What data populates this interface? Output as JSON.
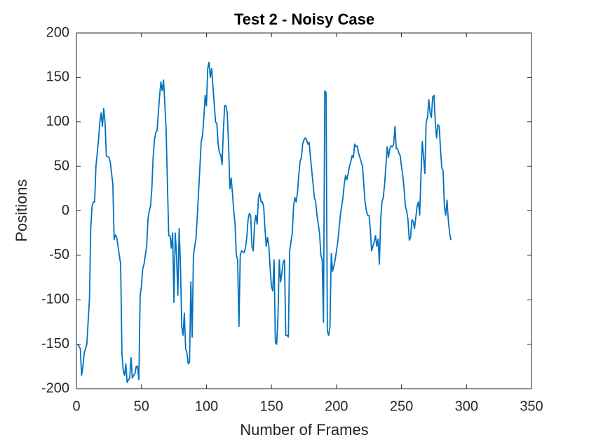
{
  "chart_data": {
    "type": "line",
    "title": "Test 2 - Noisy Case",
    "x_label": "Number of Frames",
    "y_label": "Positions",
    "xlim": [
      0,
      350
    ],
    "xticks": [
      0,
      50,
      100,
      150,
      200,
      250,
      300,
      350
    ],
    "ylim": [
      -200,
      200
    ],
    "yticks": [
      -200,
      -150,
      -100,
      -50,
      0,
      50,
      100,
      150,
      200
    ],
    "grid": false,
    "x": [
      1,
      3,
      4,
      5,
      6,
      8,
      10,
      11,
      12,
      13,
      14,
      15,
      17,
      18,
      19,
      20,
      21,
      22,
      23,
      25,
      26,
      28,
      29,
      30,
      31,
      33,
      34,
      35,
      36,
      37,
      38,
      39,
      40,
      41,
      42,
      43,
      44,
      45,
      46,
      47,
      48,
      49,
      50,
      51,
      52,
      54,
      55,
      56,
      57,
      58,
      59,
      60,
      61,
      62,
      63,
      64,
      65,
      66,
      67,
      68,
      69,
      70,
      71,
      72,
      73,
      74,
      75,
      76,
      77,
      78,
      79,
      80,
      81,
      82,
      83,
      84,
      85,
      86,
      87,
      88,
      89,
      90,
      91,
      92,
      93,
      95,
      96,
      97,
      98,
      99,
      100,
      101,
      102,
      103,
      104,
      105,
      106,
      107,
      108,
      109,
      110,
      111,
      112,
      113,
      114,
      115,
      116,
      117,
      118,
      119,
      120,
      121,
      122,
      123,
      124,
      125,
      126,
      127,
      129,
      130,
      131,
      132,
      133,
      134,
      135,
      136,
      137,
      138,
      139,
      140,
      141,
      142,
      143,
      144,
      145,
      146,
      147,
      148,
      149,
      150,
      151,
      152,
      153,
      154,
      155,
      156,
      157,
      158,
      159,
      160,
      161,
      162,
      163,
      164,
      165,
      166,
      167,
      168,
      169,
      170,
      171,
      172,
      173,
      174,
      175,
      176,
      177,
      178,
      179,
      180,
      181,
      182,
      183,
      184,
      185,
      186,
      187,
      188,
      189,
      190,
      191,
      192,
      193,
      194,
      195,
      196,
      197,
      198,
      199,
      200,
      201,
      202,
      203,
      204,
      205,
      206,
      207,
      208,
      209,
      210,
      211,
      212,
      213,
      214,
      215,
      216,
      217,
      218,
      219,
      220,
      221,
      222,
      223,
      224,
      225,
      226,
      227,
      228,
      229,
      230,
      231,
      232,
      233,
      234,
      235,
      236,
      237,
      238,
      239,
      240,
      241,
      242,
      243,
      244,
      245,
      246,
      247,
      248,
      249,
      250,
      251,
      252,
      253,
      254,
      255,
      256,
      257,
      258,
      259,
      260,
      261,
      262,
      263,
      264,
      265,
      266,
      267,
      268,
      269,
      270,
      271,
      272,
      273,
      274,
      275,
      276,
      277,
      278,
      279,
      280,
      281,
      282,
      283,
      284,
      285,
      286,
      287,
      288
    ],
    "series": [
      {
        "color": "#0072BD",
        "values": [
          -150,
          -155,
          -185,
          -175,
          -160,
          -150,
          -100,
          -20,
          5,
          10,
          10,
          50,
          80,
          100,
          110,
          95,
          115,
          100,
          62,
          60,
          55,
          30,
          -32,
          -27,
          -30,
          -50,
          -60,
          -160,
          -180,
          -185,
          -172,
          -193,
          -190,
          -188,
          -165,
          -188,
          -185,
          -183,
          -175,
          -175,
          -190,
          -95,
          -85,
          -65,
          -60,
          -40,
          -10,
          0,
          5,
          25,
          60,
          80,
          88,
          90,
          110,
          130,
          145,
          135,
          147,
          120,
          90,
          30,
          -28,
          -28,
          -42,
          -25,
          -103,
          -25,
          -50,
          -95,
          -20,
          -60,
          -130,
          -140,
          -115,
          -155,
          -160,
          -172,
          -170,
          -80,
          -142,
          -50,
          -40,
          -30,
          -5,
          50,
          78,
          85,
          105,
          130,
          118,
          160,
          167,
          150,
          160,
          140,
          120,
          100,
          98,
          75,
          65,
          63,
          52,
          90,
          118,
          118,
          110,
          75,
          25,
          37,
          20,
          0,
          -15,
          -50,
          -55,
          -130,
          -50,
          -45,
          -47,
          -42,
          -30,
          -10,
          -3,
          -5,
          -40,
          -45,
          -15,
          -5,
          -15,
          15,
          20,
          10,
          10,
          5,
          -20,
          -40,
          -30,
          -40,
          -65,
          -85,
          -90,
          -55,
          -148,
          -150,
          -120,
          -55,
          -80,
          -70,
          -58,
          -55,
          -140,
          -140,
          -142,
          -45,
          -35,
          -25,
          5,
          15,
          10,
          20,
          40,
          55,
          60,
          75,
          80,
          82,
          80,
          75,
          77,
          60,
          45,
          30,
          15,
          10,
          -5,
          -15,
          -25,
          -50,
          -55,
          -125,
          135,
          133,
          -135,
          -140,
          -130,
          -48,
          -68,
          -62,
          -55,
          -45,
          -35,
          -20,
          -5,
          5,
          15,
          30,
          40,
          35,
          42,
          50,
          55,
          62,
          60,
          75,
          72,
          73,
          65,
          60,
          55,
          50,
          30,
          10,
          0,
          -5,
          -5,
          -20,
          -45,
          -40,
          -35,
          -28,
          -40,
          -32,
          -60,
          -10,
          10,
          15,
          30,
          50,
          72,
          60,
          70,
          73,
          72,
          75,
          95,
          70,
          70,
          65,
          62,
          50,
          40,
          25,
          5,
          0,
          -10,
          -33,
          -30,
          -10,
          -12,
          -20,
          -8,
          5,
          10,
          -5,
          40,
          78,
          60,
          42,
          100,
          105,
          125,
          110,
          105,
          128,
          130,
          100,
          82,
          97,
          95,
          70,
          48,
          45,
          5,
          -5,
          12,
          -10,
          -25,
          -33
        ]
      }
    ]
  }
}
